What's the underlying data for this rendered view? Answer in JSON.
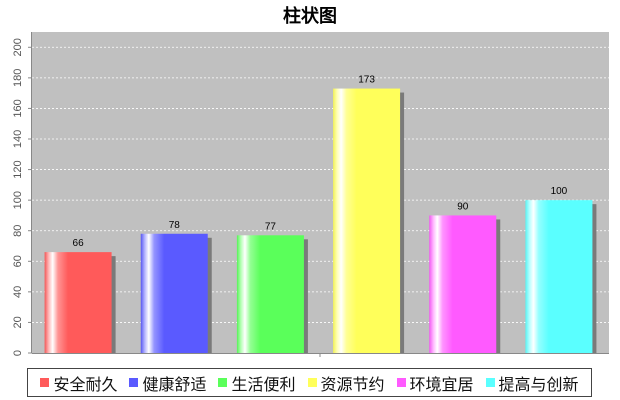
{
  "chart_data": {
    "type": "bar",
    "title": "柱状图",
    "categories": [
      "安全耐久",
      "健康舒适",
      "生活便利",
      "资源节约",
      "环境宜居",
      "提高与创新"
    ],
    "values": [
      66,
      78,
      77,
      173,
      90,
      100
    ],
    "colors": [
      "#ff5a5a",
      "#5a5aff",
      "#5aff5a",
      "#ffff5a",
      "#ff5aff",
      "#5affff"
    ],
    "ylim": [
      0,
      210
    ],
    "yticks": [
      "0",
      "20",
      "40",
      "60",
      "80",
      "100",
      "120",
      "140",
      "160",
      "180",
      "200"
    ],
    "grid": true,
    "legend_position": "bottom",
    "plot_background": "#c0c0c0"
  }
}
